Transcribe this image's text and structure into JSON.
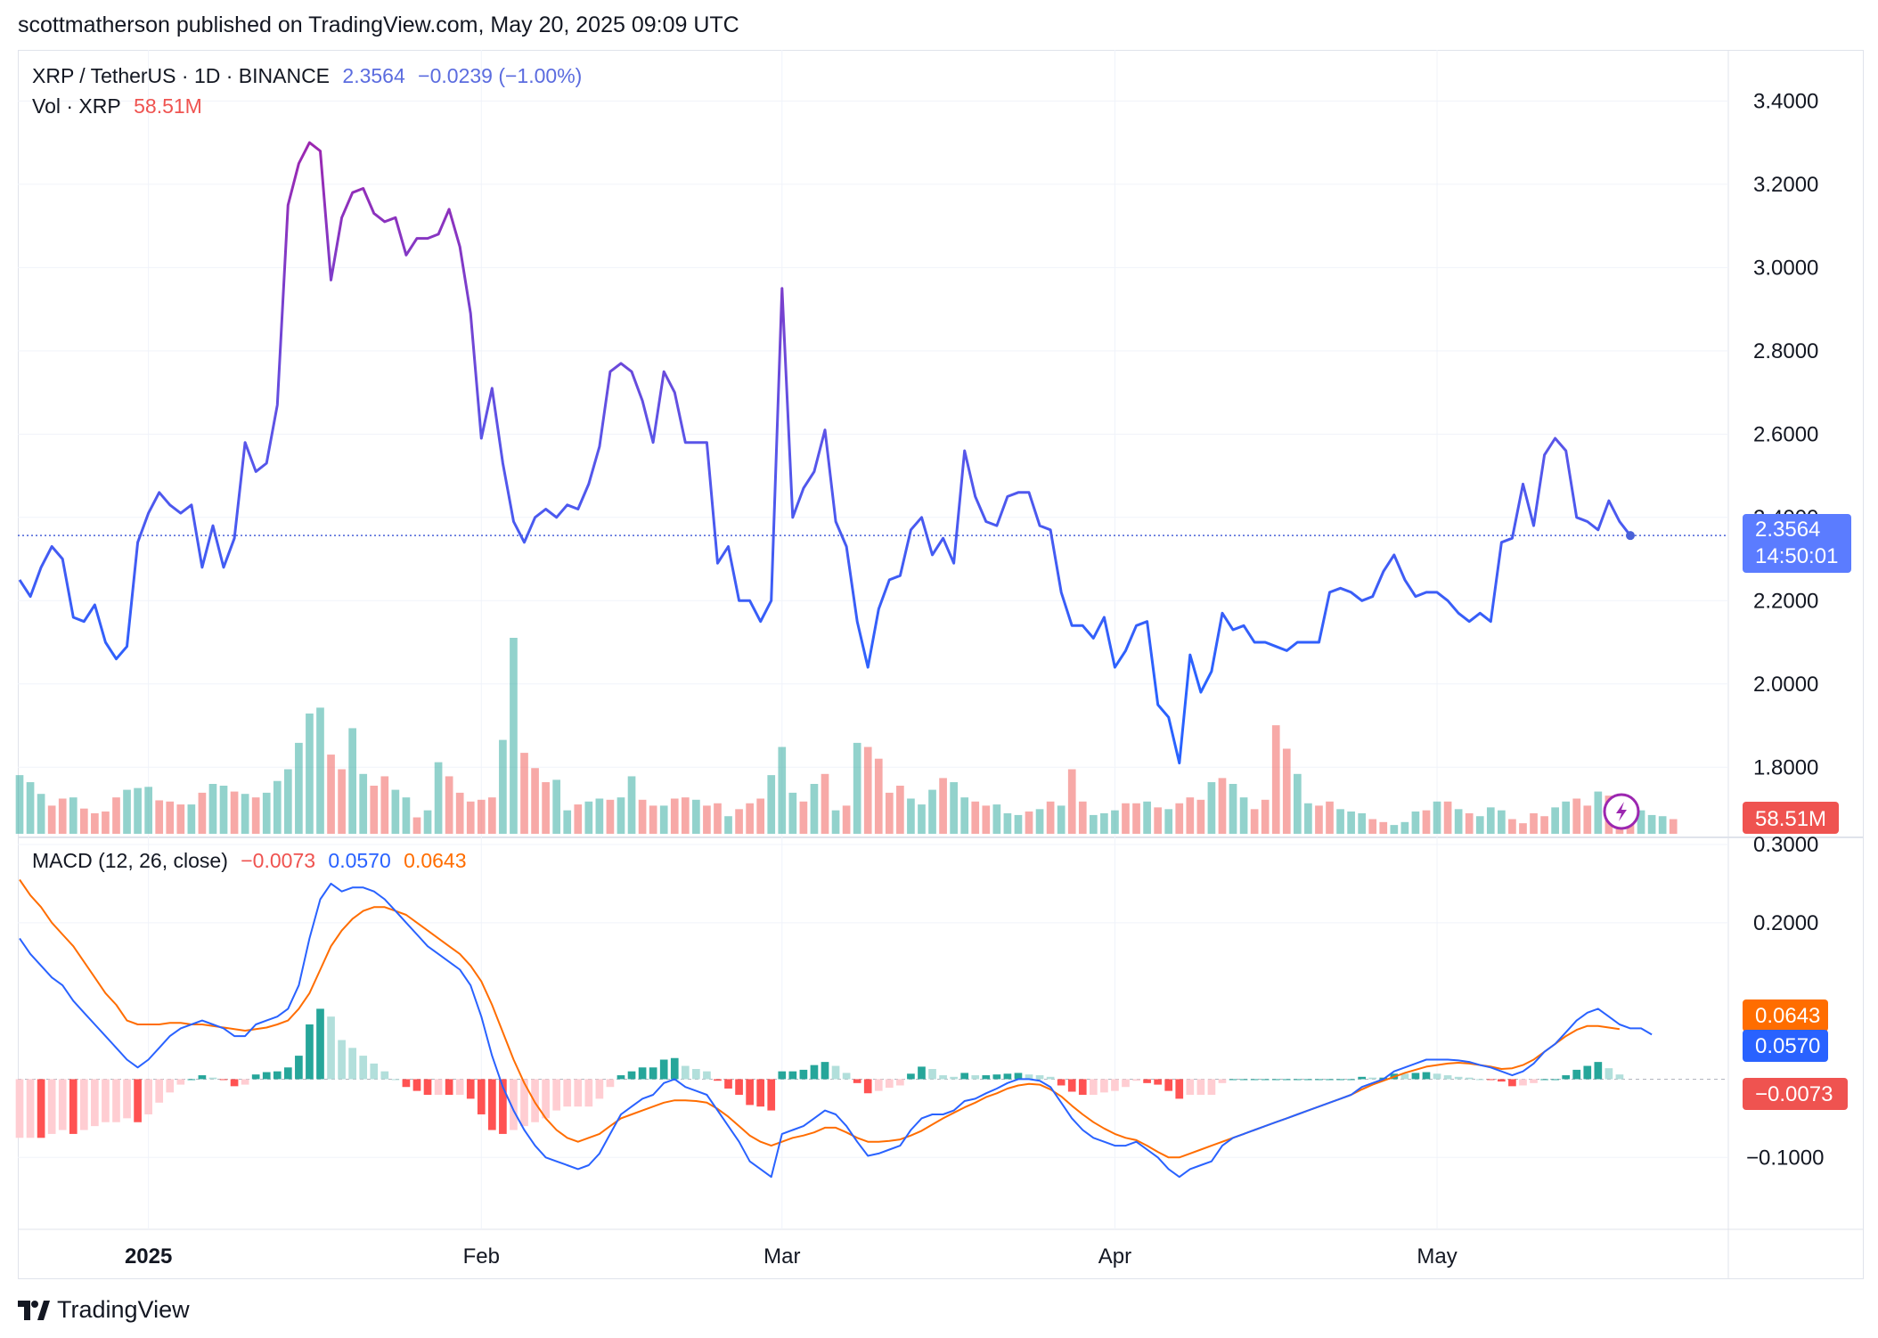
{
  "header": {
    "publisher_line": "scottmatherson published on TradingView.com, May 20, 2025 09:09 UTC"
  },
  "legend": {
    "symbol": "XRP / TetherUS · 1D · BINANCE",
    "price": "2.3564",
    "change": "−0.0239 (−1.00%)",
    "volume_label": "Vol · XRP",
    "volume_value": "58.51M",
    "macd_label": "MACD (12, 26, close)",
    "macd_hist": "−0.0073",
    "macd_line": "0.0570",
    "macd_signal": "0.0643"
  },
  "price_tag": {
    "value": "2.3564",
    "countdown": "14:50:01"
  },
  "volume_tag": "58.51M",
  "macd_tags": {
    "signal": "0.0643",
    "macd": "0.0570",
    "hist": "−0.0073"
  },
  "colors": {
    "price_line_start": "#2962ff",
    "price_line_high": "#9c27b0",
    "volume_up": "#26a69a",
    "volume_down": "#ef5350",
    "macd": "#2962ff",
    "signal": "#ff6d00"
  },
  "branding": {
    "logo_text": "TradingView"
  },
  "chart_data": [
    {
      "type": "line",
      "title": "XRP / TetherUS · 1D · BINANCE",
      "y_axis_ticks": [
        "3.4000",
        "3.2000",
        "3.0000",
        "2.8000",
        "2.6000",
        "2.4000",
        "2.2000",
        "2.0000",
        "1.8000"
      ],
      "ylim": [
        1.7,
        3.45
      ],
      "x_axis_ticks": [
        "2025",
        "Feb",
        "Mar",
        "Apr",
        "May"
      ],
      "grid": true,
      "x_start": "2024-12-20",
      "series": [
        {
          "values": [
            2.25,
            2.21,
            2.28,
            2.33,
            2.3,
            2.16,
            2.15,
            2.19,
            2.1,
            2.06,
            2.09,
            2.34,
            2.41,
            2.46,
            2.43,
            2.41,
            2.43,
            2.28,
            2.38,
            2.28,
            2.35,
            2.58,
            2.51,
            2.53,
            2.67,
            3.15,
            3.25,
            3.3,
            3.28,
            2.97,
            3.12,
            3.18,
            3.19,
            3.13,
            3.11,
            3.12,
            3.03,
            3.07,
            3.07,
            3.08,
            3.14,
            3.05,
            2.89,
            2.59,
            2.71,
            2.53,
            2.39,
            2.34,
            2.4,
            2.42,
            2.4,
            2.43,
            2.42,
            2.48,
            2.57,
            2.75,
            2.77,
            2.75,
            2.68,
            2.58,
            2.75,
            2.7,
            2.58,
            2.58,
            2.58,
            2.29,
            2.33,
            2.2,
            2.2,
            2.15,
            2.2,
            2.95,
            2.4,
            2.47,
            2.51,
            2.61,
            2.39,
            2.33,
            2.15,
            2.04,
            2.18,
            2.25,
            2.26,
            2.37,
            2.4,
            2.31,
            2.35,
            2.29,
            2.56,
            2.45,
            2.39,
            2.38,
            2.45,
            2.46,
            2.46,
            2.38,
            2.37,
            2.22,
            2.14,
            2.14,
            2.11,
            2.16,
            2.04,
            2.08,
            2.14,
            2.15,
            1.95,
            1.92,
            1.81,
            2.07,
            1.98,
            2.03,
            2.17,
            2.13,
            2.14,
            2.1,
            2.1,
            2.09,
            2.08,
            2.1,
            2.1,
            2.1,
            2.22,
            2.23,
            2.22,
            2.2,
            2.21,
            2.27,
            2.31,
            2.25,
            2.21,
            2.22,
            2.22,
            2.2,
            2.17,
            2.15,
            2.17,
            2.15,
            2.34,
            2.35,
            2.48,
            2.38,
            2.55,
            2.59,
            2.56,
            2.4,
            2.39,
            2.37,
            2.44,
            2.39,
            2.3564
          ]
        }
      ]
    },
    {
      "type": "bar",
      "title": "Vol · XRP",
      "last_value": "58.51M",
      "values": [
        1.0,
        0.88,
        0.68,
        0.48,
        0.6,
        0.62,
        0.43,
        0.35,
        0.38,
        0.62,
        0.75,
        0.78,
        0.8,
        0.57,
        0.55,
        0.5,
        0.5,
        0.7,
        0.85,
        0.82,
        0.72,
        0.68,
        0.62,
        0.7,
        0.9,
        1.1,
        1.55,
        2.05,
        2.15,
        1.35,
        1.1,
        1.8,
        1.02,
        0.82,
        0.98,
        0.75,
        0.62,
        0.28,
        0.4,
        1.22,
        0.98,
        0.7,
        0.55,
        0.58,
        0.62,
        1.6,
        3.34,
        1.38,
        1.12,
        0.88,
        0.92,
        0.4,
        0.5,
        0.55,
        0.6,
        0.58,
        0.62,
        0.98,
        0.58,
        0.48,
        0.48,
        0.6,
        0.62,
        0.58,
        0.48,
        0.52,
        0.3,
        0.42,
        0.52,
        0.6,
        1.0,
        1.48,
        0.7,
        0.55,
        0.85,
        1.02,
        0.4,
        0.48,
        1.55,
        1.48,
        1.28,
        0.7,
        0.82,
        0.6,
        0.5,
        0.75,
        0.95,
        0.88,
        0.62,
        0.55,
        0.48,
        0.5,
        0.35,
        0.32,
        0.38,
        0.42,
        0.55,
        0.48,
        1.1,
        0.55,
        0.32,
        0.35,
        0.4,
        0.52,
        0.52,
        0.55,
        0.45,
        0.42,
        0.52,
        0.62,
        0.58,
        0.88,
        0.95,
        0.85,
        0.62,
        0.42,
        0.58,
        1.85,
        1.45,
        1.02,
        0.52,
        0.48,
        0.55,
        0.42,
        0.38,
        0.35,
        0.25,
        0.2,
        0.15,
        0.2,
        0.38,
        0.4,
        0.55,
        0.55,
        0.42,
        0.35,
        0.3,
        0.45,
        0.4,
        0.25,
        0.18,
        0.35,
        0.3,
        0.45,
        0.55,
        0.6,
        0.48,
        0.72,
        0.65,
        0.45,
        0.38,
        0.4,
        0.32,
        0.3,
        0.25
      ],
      "up": [
        true,
        true,
        true,
        false,
        false,
        true,
        false,
        false,
        false,
        false,
        true,
        true,
        true,
        false,
        false,
        false,
        true,
        false,
        true,
        true,
        false,
        true,
        false,
        true,
        true,
        true,
        true,
        true,
        true,
        false,
        false,
        true,
        true,
        false,
        false,
        true,
        true,
        false,
        true,
        true,
        false,
        false,
        false,
        false,
        false,
        true,
        true,
        false,
        false,
        false,
        true,
        true,
        false,
        true,
        true,
        false,
        true,
        true,
        false,
        false,
        true,
        false,
        false,
        true,
        false,
        false,
        true,
        false,
        false,
        false,
        true,
        true,
        true,
        false,
        true,
        false,
        true,
        false,
        true,
        false,
        false,
        false,
        false,
        true,
        true,
        true,
        false,
        true,
        true,
        false,
        false,
        true,
        true,
        true,
        false,
        true,
        false,
        true,
        false,
        false,
        true,
        true,
        true,
        false,
        false,
        true,
        false,
        true,
        false,
        false,
        false,
        true,
        false,
        true,
        true,
        false,
        false,
        false,
        false,
        true,
        true,
        false,
        false,
        true,
        true,
        true,
        false,
        false,
        true,
        true,
        true,
        false,
        true,
        false,
        true,
        false,
        true,
        true,
        true,
        false,
        false,
        false,
        false,
        true,
        true,
        false,
        false,
        true,
        false,
        false,
        false,
        true,
        true,
        true,
        false,
        false,
        true,
        true
      ]
    },
    {
      "type": "line",
      "title": "MACD (12, 26, close)",
      "y_axis_ticks": [
        "0.3000",
        "0.2000",
        "-0.1000"
      ],
      "ylim": [
        -0.135,
        0.3
      ],
      "series": [
        {
          "name": "MACD",
          "values": [
            0.18,
            0.16,
            0.145,
            0.13,
            0.12,
            0.1,
            0.085,
            0.07,
            0.055,
            0.04,
            0.025,
            0.015,
            0.025,
            0.04,
            0.055,
            0.065,
            0.07,
            0.075,
            0.07,
            0.065,
            0.055,
            0.055,
            0.07,
            0.075,
            0.08,
            0.09,
            0.12,
            0.18,
            0.23,
            0.25,
            0.24,
            0.245,
            0.245,
            0.24,
            0.23,
            0.215,
            0.2,
            0.185,
            0.17,
            0.16,
            0.15,
            0.14,
            0.12,
            0.08,
            0.03,
            -0.01,
            -0.04,
            -0.065,
            -0.085,
            -0.1,
            -0.105,
            -0.11,
            -0.115,
            -0.11,
            -0.095,
            -0.07,
            -0.045,
            -0.035,
            -0.025,
            -0.02,
            -0.005,
            0.0,
            -0.01,
            -0.015,
            -0.02,
            -0.04,
            -0.06,
            -0.08,
            -0.105,
            -0.115,
            -0.125,
            -0.07,
            -0.065,
            -0.06,
            -0.05,
            -0.04,
            -0.045,
            -0.06,
            -0.08,
            -0.098,
            -0.095,
            -0.09,
            -0.085,
            -0.065,
            -0.05,
            -0.045,
            -0.045,
            -0.04,
            -0.028,
            -0.025,
            -0.018,
            -0.012,
            -0.005,
            0.0,
            0.0,
            -0.002,
            -0.01,
            -0.03,
            -0.05,
            -0.065,
            -0.075,
            -0.08,
            -0.085,
            -0.085,
            -0.08,
            -0.09,
            -0.1,
            -0.115,
            -0.125,
            -0.115,
            -0.11,
            -0.105,
            -0.085,
            -0.075,
            -0.07,
            -0.065,
            -0.06,
            -0.055,
            -0.05,
            -0.045,
            -0.04,
            -0.035,
            -0.03,
            -0.025,
            -0.02,
            -0.01,
            -0.005,
            0.0,
            0.01,
            0.015,
            0.02,
            0.025,
            0.025,
            0.025,
            0.024,
            0.022,
            0.018,
            0.015,
            0.01,
            0.005,
            0.01,
            0.02,
            0.035,
            0.045,
            0.06,
            0.075,
            0.085,
            0.09,
            0.08,
            0.07,
            0.065,
            0.065,
            0.057
          ]
        },
        {
          "name": "Signal",
          "values": [
            0.255,
            0.235,
            0.22,
            0.2,
            0.185,
            0.17,
            0.15,
            0.13,
            0.11,
            0.095,
            0.075,
            0.07,
            0.07,
            0.07,
            0.072,
            0.072,
            0.07,
            0.07,
            0.068,
            0.066,
            0.064,
            0.062,
            0.064,
            0.066,
            0.07,
            0.075,
            0.09,
            0.11,
            0.14,
            0.17,
            0.19,
            0.205,
            0.215,
            0.22,
            0.22,
            0.215,
            0.21,
            0.2,
            0.19,
            0.18,
            0.17,
            0.16,
            0.145,
            0.125,
            0.095,
            0.06,
            0.025,
            -0.005,
            -0.03,
            -0.05,
            -0.065,
            -0.075,
            -0.08,
            -0.075,
            -0.07,
            -0.06,
            -0.05,
            -0.045,
            -0.04,
            -0.035,
            -0.03,
            -0.027,
            -0.027,
            -0.028,
            -0.03,
            -0.038,
            -0.048,
            -0.06,
            -0.072,
            -0.08,
            -0.085,
            -0.08,
            -0.075,
            -0.072,
            -0.068,
            -0.062,
            -0.062,
            -0.068,
            -0.075,
            -0.08,
            -0.08,
            -0.079,
            -0.077,
            -0.072,
            -0.066,
            -0.058,
            -0.05,
            -0.043,
            -0.036,
            -0.03,
            -0.023,
            -0.018,
            -0.012,
            -0.008,
            -0.006,
            -0.007,
            -0.013,
            -0.022,
            -0.034,
            -0.045,
            -0.055,
            -0.063,
            -0.07,
            -0.075,
            -0.078,
            -0.085,
            -0.093,
            -0.1,
            -0.1,
            -0.095,
            -0.09,
            -0.085,
            -0.08,
            -0.075,
            -0.07,
            -0.065,
            -0.06,
            -0.055,
            -0.05,
            -0.045,
            -0.04,
            -0.035,
            -0.03,
            -0.025,
            -0.02,
            -0.013,
            -0.007,
            -0.002,
            0.003,
            0.008,
            0.012,
            0.016,
            0.018,
            0.02,
            0.021,
            0.02,
            0.018,
            0.016,
            0.013,
            0.014,
            0.018,
            0.025,
            0.035,
            0.045,
            0.055,
            0.063,
            0.068,
            0.068,
            0.066,
            0.064
          ]
        }
      ]
    }
  ]
}
